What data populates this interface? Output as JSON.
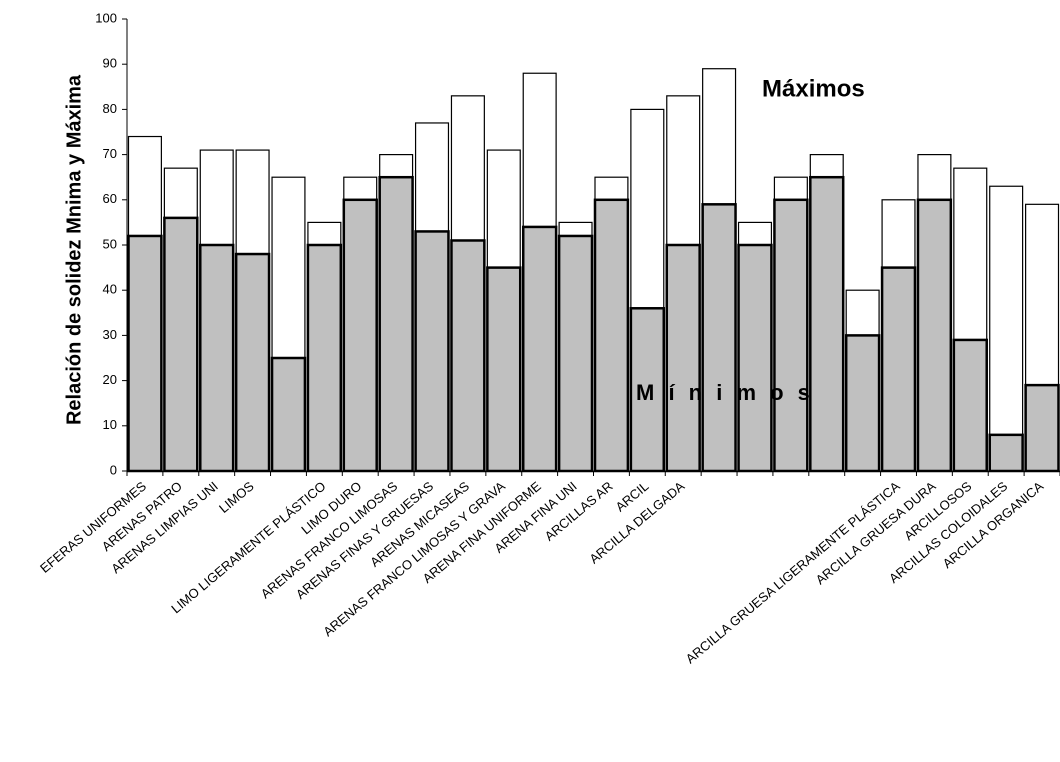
{
  "chart_data": {
    "type": "bar",
    "mode": "overlay",
    "y_label": "Relación de solidez Mnima y Máxima",
    "categories": [
      "EFERAS UNIFORMES",
      "ARENAS PATRO",
      "ARENAS LIMPIAS UNI",
      "LIMOS",
      null,
      "LIMO LIGERAMENTE PLÁSTICO",
      "LIMO DURO",
      "ARENAS FRANCO LIMOSAS",
      "ARENAS FINAS Y GRUESAS",
      "ARENAS MICASEAS",
      "ARENAS FRANCO LIMOSAS Y GRAVA",
      "ARENA FINA UNIFORME",
      "ARENA FINA UNI",
      "ARCILLAS AR",
      "ARCIL",
      "ARCILLA DELGADA",
      null,
      null,
      null,
      null,
      null,
      "ARCILLA GRUESA LIGERAMENTE PLÁSTICA",
      "ARCILLA GRUESA DURA",
      "ARCILLOSOS",
      "ARCILLAS COLOIDALES",
      "ARCILLA ORGANICA"
    ],
    "series": [
      {
        "name": "Máximos",
        "color": "#ffffff",
        "values": [
          74,
          67,
          71,
          71,
          65,
          55,
          65,
          70,
          77,
          83,
          71,
          88,
          55,
          65,
          80,
          83,
          89,
          55,
          65,
          70,
          40,
          60,
          70,
          67,
          63,
          59
        ]
      },
      {
        "name": "M í n i m o s",
        "color": "#c0c0c0",
        "values": [
          52,
          56,
          50,
          48,
          25,
          50,
          60,
          65,
          53,
          51,
          45,
          54,
          52,
          60,
          36,
          50,
          59,
          50,
          60,
          65,
          30,
          45,
          60,
          29,
          8,
          19
        ]
      }
    ],
    "ylim": [
      0,
      100
    ],
    "yticks": [
      0,
      10,
      20,
      30,
      40,
      50,
      60,
      70,
      80,
      90,
      100
    ],
    "grid": false
  }
}
